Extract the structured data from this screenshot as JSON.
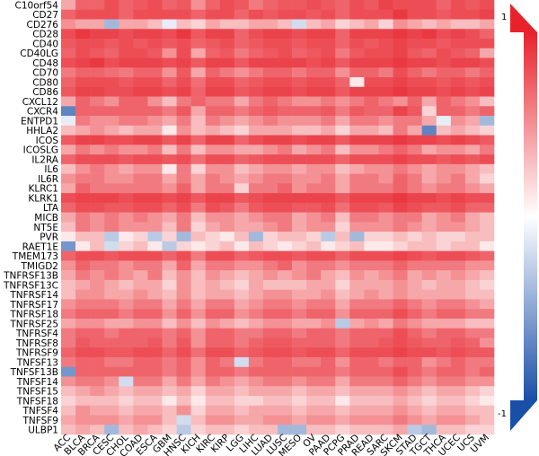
{
  "chart_data": {
    "type": "heatmap",
    "title": "",
    "rows": [
      "C10orf54",
      "CD27",
      "CD276",
      "CD28",
      "CD40",
      "CD40LG",
      "CD48",
      "CD70",
      "CD80",
      "CD86",
      "CXCL12",
      "CXCR4",
      "ENTPD1",
      "HHLA2",
      "ICOS",
      "ICOSLG",
      "IL2RA",
      "IL6",
      "IL6R",
      "KLRC1",
      "KLRK1",
      "LTA",
      "MICB",
      "NT5E",
      "PVR",
      "RAET1E",
      "TMEM173",
      "TMIGD2",
      "TNFRSF13B",
      "TNFRSF13C",
      "TNFRSF14",
      "TNFRSF17",
      "TNFRSF18",
      "TNFRSF25",
      "TNFRSF4",
      "TNFRSF8",
      "TNFRSF9",
      "TNFSF13",
      "TNFSF13B",
      "TNFSF14",
      "TNFSF15",
      "TNFSF18",
      "TNFSF4",
      "TNFSF9",
      "ULBP1"
    ],
    "columns": [
      "ACC",
      "BLCA",
      "BRCA",
      "CESC",
      "CHOL",
      "COAD",
      "ESCA",
      "GBM",
      "HNSC",
      "KICH",
      "KIRC",
      "KIRP",
      "LGG",
      "LIHC",
      "LUAD",
      "LUSC",
      "MESO",
      "OV",
      "PAAD",
      "PCPG",
      "PRAD",
      "READ",
      "SARC",
      "SKCM",
      "STAD",
      "TGCT",
      "THCA",
      "UCEC",
      "UCS",
      "UVM"
    ],
    "color_scale": {
      "min": -1,
      "max": 1,
      "ticks": [
        "1",
        "-1"
      ],
      "low_color": "#1a4fa8",
      "mid_color": "#ffffff",
      "high_color": "#e8222b"
    },
    "values": [
      [
        0.4,
        0.7,
        0.7,
        0.8,
        0.7,
        0.75,
        0.8,
        0.7,
        0.75,
        0.5,
        0.7,
        0.8,
        0.75,
        0.6,
        0.7,
        0.75,
        0.75,
        0.8,
        0.75,
        0.7,
        0.8,
        0.75,
        0.85,
        0.8,
        0.8,
        0.8,
        0.7,
        0.8,
        0.75,
        0.8
      ],
      [
        0.7,
        0.8,
        0.8,
        0.8,
        0.7,
        0.8,
        0.8,
        0.8,
        0.8,
        0.7,
        0.8,
        0.8,
        0.7,
        0.8,
        0.75,
        0.8,
        0.8,
        0.75,
        0.8,
        0.7,
        0.8,
        0.8,
        0.8,
        0.9,
        0.8,
        0.8,
        0.75,
        0.8,
        0.8,
        0.85
      ],
      [
        0.5,
        0.4,
        0.4,
        -0.4,
        0.4,
        0.4,
        0.3,
        -0.1,
        0.3,
        0.2,
        0.4,
        0.3,
        0.3,
        0.4,
        0.4,
        0.3,
        -0.2,
        0.3,
        0.4,
        0.2,
        0.3,
        0.4,
        0.2,
        0.5,
        0.4,
        0.3,
        0.4,
        0.3,
        0.3,
        0.4
      ],
      [
        0.8,
        0.9,
        0.85,
        0.85,
        0.8,
        0.85,
        0.85,
        0.8,
        0.9,
        0.75,
        0.85,
        0.85,
        0.7,
        0.8,
        0.85,
        0.85,
        0.8,
        0.85,
        0.85,
        0.7,
        0.85,
        0.85,
        0.85,
        0.9,
        0.85,
        0.9,
        0.8,
        0.85,
        0.8,
        0.7
      ],
      [
        0.75,
        0.8,
        0.8,
        0.75,
        0.8,
        0.75,
        0.8,
        0.75,
        0.8,
        0.7,
        0.75,
        0.8,
        0.7,
        0.75,
        0.8,
        0.8,
        0.75,
        0.8,
        0.8,
        0.7,
        0.8,
        0.75,
        0.8,
        0.85,
        0.8,
        0.8,
        0.75,
        0.8,
        0.8,
        0.8
      ],
      [
        0.7,
        0.8,
        0.75,
        0.7,
        0.8,
        0.8,
        0.75,
        0.5,
        0.8,
        0.4,
        0.7,
        0.75,
        0.6,
        0.7,
        0.75,
        0.8,
        0.7,
        0.75,
        0.8,
        0.6,
        0.75,
        0.8,
        0.8,
        0.85,
        0.75,
        0.7,
        0.8,
        0.75,
        0.7,
        0.4
      ],
      [
        0.8,
        0.85,
        0.9,
        0.8,
        0.85,
        0.85,
        0.85,
        0.8,
        0.85,
        0.75,
        0.85,
        0.85,
        0.75,
        0.85,
        0.85,
        0.85,
        0.85,
        0.8,
        0.85,
        0.75,
        0.85,
        0.85,
        0.85,
        0.9,
        0.85,
        0.85,
        0.8,
        0.85,
        0.85,
        0.8
      ],
      [
        0.6,
        0.7,
        0.7,
        0.65,
        0.6,
        0.7,
        0.7,
        0.5,
        0.75,
        0.4,
        0.7,
        0.6,
        0.5,
        0.6,
        0.7,
        0.7,
        0.6,
        0.7,
        0.7,
        0.5,
        0.7,
        0.7,
        0.6,
        0.8,
        0.7,
        0.6,
        0.7,
        0.7,
        0.6,
        0.7
      ],
      [
        0.7,
        0.8,
        0.8,
        0.8,
        0.75,
        0.8,
        0.8,
        0.7,
        0.8,
        0.65,
        0.8,
        0.8,
        0.7,
        0.75,
        0.8,
        0.8,
        0.75,
        0.8,
        0.8,
        0.7,
        0.1,
        0.8,
        0.8,
        0.85,
        0.8,
        0.8,
        0.75,
        0.8,
        0.75,
        0.8
      ],
      [
        0.75,
        0.85,
        0.85,
        0.8,
        0.8,
        0.85,
        0.85,
        0.8,
        0.85,
        0.7,
        0.85,
        0.85,
        0.75,
        0.8,
        0.85,
        0.85,
        0.8,
        0.85,
        0.85,
        0.75,
        0.85,
        0.85,
        0.85,
        0.9,
        0.85,
        0.85,
        0.8,
        0.85,
        0.8,
        0.85
      ],
      [
        0.4,
        0.7,
        0.6,
        0.5,
        0.7,
        0.7,
        0.5,
        0.3,
        0.6,
        0.7,
        0.6,
        0.6,
        0.4,
        0.6,
        0.7,
        0.6,
        0.5,
        0.5,
        0.6,
        0.5,
        0.6,
        0.7,
        0.6,
        0.5,
        0.7,
        0.4,
        0.7,
        0.6,
        0.5,
        0.3
      ],
      [
        -0.7,
        0.7,
        0.7,
        0.7,
        0.7,
        0.7,
        0.7,
        0.6,
        0.75,
        0.4,
        0.7,
        0.7,
        0.6,
        0.7,
        0.75,
        0.7,
        0.7,
        0.7,
        0.75,
        0.6,
        0.75,
        0.7,
        0.7,
        0.85,
        0.75,
        0.2,
        0.7,
        0.7,
        0.6,
        0.7
      ],
      [
        -0.1,
        0.6,
        0.5,
        0.5,
        0.6,
        0.6,
        0.5,
        0.4,
        0.6,
        0.3,
        0.6,
        0.5,
        0.4,
        0.5,
        0.6,
        0.5,
        0.5,
        0.5,
        0.6,
        0.4,
        0.6,
        0.6,
        0.5,
        0.6,
        0.6,
        0.4,
        -0.1,
        0.5,
        0.4,
        -0.4
      ],
      [
        0.3,
        0.4,
        0.5,
        0.4,
        0.3,
        0.4,
        0.4,
        0.1,
        0.5,
        0.3,
        0.4,
        0.3,
        0.2,
        0.4,
        0.4,
        0.4,
        0.3,
        0.3,
        0.4,
        0.2,
        0.4,
        0.4,
        0.3,
        0.6,
        0.4,
        -0.7,
        0.3,
        0.4,
        0.3,
        0.2
      ],
      [
        0.75,
        0.85,
        0.85,
        0.8,
        0.8,
        0.85,
        0.85,
        0.75,
        0.85,
        0.7,
        0.85,
        0.85,
        0.7,
        0.8,
        0.85,
        0.85,
        0.8,
        0.85,
        0.85,
        0.75,
        0.85,
        0.85,
        0.85,
        0.9,
        0.85,
        0.85,
        0.8,
        0.85,
        0.8,
        0.75
      ],
      [
        0.4,
        0.6,
        0.5,
        0.6,
        0.5,
        0.5,
        0.6,
        0.3,
        0.6,
        0.3,
        0.5,
        0.5,
        0.4,
        0.4,
        0.5,
        0.6,
        0.4,
        0.5,
        0.6,
        0.3,
        0.5,
        0.5,
        0.6,
        0.7,
        0.6,
        0.4,
        0.5,
        0.5,
        0.4,
        0.6
      ],
      [
        0.7,
        0.8,
        0.8,
        0.8,
        0.75,
        0.8,
        0.8,
        0.75,
        0.8,
        0.65,
        0.8,
        0.8,
        0.7,
        0.75,
        0.8,
        0.8,
        0.8,
        0.8,
        0.8,
        0.7,
        0.8,
        0.8,
        0.8,
        0.85,
        0.8,
        0.8,
        0.75,
        0.8,
        0.75,
        0.8
      ],
      [
        0.3,
        0.5,
        0.6,
        0.5,
        0.4,
        0.5,
        0.5,
        0.1,
        0.6,
        0.2,
        0.5,
        0.5,
        0.3,
        0.4,
        0.5,
        0.5,
        0.4,
        0.5,
        0.5,
        0.3,
        0.4,
        0.5,
        0.5,
        0.6,
        0.5,
        0.4,
        0.5,
        0.5,
        0.4,
        0.3
      ],
      [
        0.5,
        0.6,
        0.6,
        0.5,
        0.5,
        0.6,
        0.6,
        0.4,
        0.6,
        0.4,
        0.6,
        0.5,
        0.4,
        0.5,
        0.6,
        0.6,
        0.5,
        0.5,
        0.6,
        0.4,
        0.6,
        0.6,
        0.5,
        0.7,
        0.6,
        0.4,
        0.5,
        0.6,
        0.4,
        0.2
      ],
      [
        0.4,
        0.7,
        0.6,
        0.6,
        0.6,
        0.6,
        0.6,
        0.5,
        0.7,
        0.4,
        0.6,
        0.6,
        0.2,
        0.6,
        0.6,
        0.7,
        0.5,
        0.6,
        0.6,
        0.4,
        0.6,
        0.6,
        0.6,
        0.7,
        0.6,
        0.5,
        0.6,
        0.6,
        0.5,
        0.4
      ],
      [
        0.8,
        0.85,
        0.85,
        0.85,
        0.8,
        0.85,
        0.85,
        0.8,
        0.85,
        0.75,
        0.85,
        0.85,
        0.75,
        0.8,
        0.85,
        0.85,
        0.85,
        0.85,
        0.85,
        0.75,
        0.85,
        0.85,
        0.85,
        0.9,
        0.85,
        0.85,
        0.8,
        0.85,
        0.8,
        0.8
      ],
      [
        0.7,
        0.8,
        0.8,
        0.75,
        0.75,
        0.8,
        0.8,
        0.7,
        0.8,
        0.6,
        0.8,
        0.75,
        0.6,
        0.75,
        0.8,
        0.8,
        0.75,
        0.75,
        0.8,
        0.65,
        0.8,
        0.8,
        0.75,
        0.85,
        0.8,
        0.75,
        0.75,
        0.8,
        0.7,
        0.7
      ],
      [
        0.4,
        0.6,
        0.5,
        0.6,
        0.5,
        0.6,
        0.5,
        0.4,
        0.6,
        0.3,
        0.5,
        0.5,
        0.4,
        0.5,
        0.6,
        0.6,
        0.4,
        0.5,
        0.6,
        0.3,
        0.6,
        0.6,
        0.5,
        0.6,
        0.6,
        0.4,
        0.5,
        0.6,
        0.4,
        0.3
      ],
      [
        0.3,
        0.6,
        0.5,
        0.6,
        0.5,
        0.5,
        0.5,
        0.3,
        0.6,
        0.2,
        0.4,
        0.5,
        0.4,
        0.4,
        0.5,
        0.6,
        0.4,
        0.5,
        0.5,
        0.2,
        0.5,
        0.5,
        0.5,
        0.6,
        0.5,
        0.4,
        0.5,
        0.5,
        0.4,
        0.3
      ],
      [
        0.1,
        0.3,
        0.3,
        -0.3,
        0.1,
        0.2,
        -0.3,
        0.2,
        -0.4,
        0.3,
        0.2,
        0.1,
        0.3,
        -0.4,
        0.2,
        0.3,
        0.3,
        0.2,
        -0.3,
        0.3,
        -0.4,
        0.2,
        0.2,
        0.3,
        0.2,
        0.3,
        0.2,
        0.2,
        0.3,
        0.3
      ],
      [
        -0.6,
        0.1,
        0.3,
        -0.2,
        0.2,
        0.3,
        0.1,
        -0.3,
        0.2,
        0.1,
        0.2,
        0.3,
        0.1,
        0.3,
        0.2,
        0.1,
        0.2,
        0.3,
        0.1,
        0.2,
        0.3,
        0.1,
        0.1,
        0.2,
        0.3,
        0.3,
        0.2,
        0.3,
        0.3,
        0.1
      ],
      [
        0.7,
        0.8,
        0.8,
        0.75,
        0.8,
        0.8,
        0.8,
        0.7,
        0.8,
        0.6,
        0.8,
        0.8,
        0.7,
        0.75,
        0.8,
        0.8,
        0.75,
        0.8,
        0.8,
        0.7,
        0.8,
        0.8,
        0.8,
        0.85,
        0.8,
        0.75,
        0.8,
        0.8,
        0.75,
        0.7
      ],
      [
        0.5,
        0.7,
        0.6,
        0.6,
        0.5,
        0.6,
        0.6,
        0.4,
        0.7,
        0.4,
        0.6,
        0.6,
        0.5,
        0.5,
        0.6,
        0.7,
        0.5,
        0.6,
        0.6,
        0.5,
        0.6,
        0.6,
        0.6,
        0.7,
        0.6,
        0.6,
        0.6,
        0.6,
        0.5,
        0.5
      ],
      [
        0.4,
        0.6,
        0.5,
        0.6,
        0.5,
        0.4,
        0.6,
        0.3,
        0.5,
        0.3,
        0.5,
        0.4,
        0.3,
        0.4,
        0.5,
        0.4,
        0.5,
        0.6,
        0.4,
        0.3,
        0.5,
        0.4,
        0.5,
        0.6,
        0.4,
        0.5,
        0.4,
        0.5,
        0.4,
        0.3
      ],
      [
        0.3,
        0.4,
        0.5,
        0.4,
        0.3,
        0.4,
        0.4,
        0.2,
        0.5,
        0.3,
        0.4,
        0.3,
        0.2,
        0.4,
        0.3,
        0.3,
        0.3,
        0.4,
        0.4,
        0.2,
        0.4,
        0.4,
        0.4,
        0.5,
        0.4,
        0.3,
        0.4,
        0.4,
        0.3,
        0.2
      ],
      [
        0.3,
        0.5,
        0.5,
        0.4,
        0.4,
        0.5,
        0.4,
        0.3,
        0.5,
        0.3,
        0.4,
        0.4,
        0.3,
        0.4,
        0.5,
        0.5,
        0.4,
        0.4,
        0.5,
        0.3,
        0.4,
        0.5,
        0.4,
        0.5,
        0.4,
        0.4,
        0.4,
        0.4,
        0.3,
        0.3
      ],
      [
        0.5,
        0.6,
        0.6,
        0.6,
        0.5,
        0.6,
        0.6,
        0.4,
        0.6,
        0.4,
        0.6,
        0.6,
        0.4,
        0.5,
        0.6,
        0.6,
        0.5,
        0.6,
        0.6,
        0.4,
        0.6,
        0.6,
        0.6,
        0.7,
        0.6,
        0.5,
        0.6,
        0.6,
        0.5,
        0.4
      ],
      [
        0.6,
        0.7,
        0.7,
        0.7,
        0.6,
        0.7,
        0.7,
        0.5,
        0.7,
        0.5,
        0.7,
        0.7,
        0.5,
        0.6,
        0.7,
        0.7,
        0.6,
        0.7,
        0.7,
        0.5,
        0.7,
        0.7,
        0.7,
        0.8,
        0.7,
        0.6,
        0.7,
        0.7,
        0.6,
        0.6
      ],
      [
        0.4,
        0.5,
        0.5,
        0.4,
        0.4,
        0.5,
        0.5,
        0.3,
        0.5,
        0.3,
        0.5,
        0.4,
        0.3,
        0.4,
        0.5,
        0.5,
        0.4,
        0.4,
        0.5,
        -0.3,
        0.4,
        0.5,
        0.4,
        0.6,
        0.5,
        0.4,
        0.4,
        0.4,
        0.3,
        0.3
      ],
      [
        0.6,
        0.7,
        0.7,
        0.6,
        0.7,
        0.7,
        0.7,
        0.6,
        0.7,
        0.5,
        0.7,
        0.7,
        0.6,
        0.6,
        0.7,
        0.7,
        0.6,
        0.7,
        0.7,
        0.6,
        0.7,
        0.7,
        0.7,
        0.8,
        0.7,
        0.6,
        0.7,
        0.7,
        0.6,
        0.6
      ],
      [
        0.6,
        0.75,
        0.7,
        0.7,
        0.7,
        0.7,
        0.75,
        0.6,
        0.75,
        0.5,
        0.7,
        0.7,
        0.6,
        0.7,
        0.75,
        0.75,
        0.7,
        0.7,
        0.7,
        0.6,
        0.7,
        0.7,
        0.75,
        0.8,
        0.75,
        0.7,
        0.7,
        0.75,
        0.7,
        0.5
      ],
      [
        0.7,
        0.8,
        0.8,
        0.75,
        0.75,
        0.8,
        0.8,
        0.7,
        0.8,
        0.65,
        0.8,
        0.8,
        0.7,
        0.75,
        0.8,
        0.8,
        0.75,
        0.8,
        0.8,
        0.7,
        0.8,
        0.8,
        0.8,
        0.85,
        0.8,
        0.8,
        0.75,
        0.8,
        0.75,
        0.75
      ],
      [
        0.6,
        0.7,
        0.7,
        0.6,
        0.6,
        0.7,
        0.7,
        0.6,
        0.7,
        0.5,
        0.7,
        0.6,
        -0.2,
        0.6,
        0.7,
        0.7,
        0.6,
        0.6,
        0.7,
        0.5,
        0.7,
        0.7,
        0.6,
        0.7,
        0.7,
        0.5,
        0.6,
        0.7,
        0.6,
        0.6
      ],
      [
        -0.6,
        0.7,
        0.7,
        0.7,
        0.7,
        0.7,
        0.7,
        0.6,
        0.7,
        0.5,
        0.7,
        0.7,
        0.6,
        0.7,
        0.7,
        0.7,
        0.7,
        0.7,
        0.7,
        0.6,
        0.7,
        0.7,
        0.7,
        0.8,
        0.7,
        0.6,
        0.7,
        0.7,
        0.6,
        0.7
      ],
      [
        0.5,
        0.6,
        0.6,
        0.5,
        -0.2,
        0.6,
        0.6,
        0.4,
        0.6,
        0.4,
        0.6,
        0.5,
        0.4,
        0.5,
        0.6,
        0.6,
        0.5,
        0.6,
        0.6,
        0.4,
        0.6,
        0.6,
        0.6,
        0.7,
        0.6,
        0.5,
        0.6,
        0.6,
        0.5,
        0.5
      ],
      [
        0.3,
        0.4,
        0.5,
        0.4,
        0.3,
        0.4,
        0.4,
        0.3,
        0.4,
        0.2,
        0.4,
        0.4,
        0.3,
        0.4,
        0.4,
        0.4,
        0.3,
        0.4,
        0.4,
        0.3,
        0.4,
        0.4,
        0.4,
        0.5,
        0.4,
        0.3,
        0.4,
        0.4,
        0.3,
        0.2
      ],
      [
        0.2,
        0.3,
        0.3,
        0.3,
        0.2,
        0.3,
        0.3,
        0.1,
        0.3,
        0.1,
        0.3,
        0.3,
        0.2,
        0.2,
        0.3,
        0.3,
        0.2,
        0.3,
        0.3,
        0.1,
        0.3,
        0.3,
        0.3,
        0.4,
        0.3,
        0.2,
        0.3,
        0.3,
        0.2,
        0.1
      ],
      [
        0.3,
        0.5,
        0.4,
        0.4,
        0.3,
        0.4,
        0.4,
        0.3,
        0.5,
        0.2,
        0.4,
        0.4,
        0.3,
        0.4,
        0.4,
        0.4,
        0.3,
        0.4,
        0.4,
        0.3,
        0.4,
        0.4,
        0.4,
        0.5,
        0.4,
        0.3,
        0.4,
        0.4,
        0.3,
        0.3
      ],
      [
        0.4,
        0.5,
        0.5,
        0.5,
        0.4,
        0.5,
        0.5,
        0.3,
        -0.2,
        0.3,
        0.5,
        0.5,
        0.4,
        0.4,
        0.5,
        0.5,
        0.4,
        0.5,
        0.5,
        0.4,
        0.5,
        0.5,
        0.5,
        0.6,
        0.5,
        0.4,
        0.5,
        0.5,
        0.4,
        0.3
      ],
      [
        0.3,
        0.4,
        0.3,
        -0.4,
        0.3,
        0.4,
        0.3,
        0.2,
        -0.3,
        0.2,
        0.3,
        0.3,
        0.2,
        0.3,
        0.3,
        -0.4,
        -0.4,
        0.3,
        0.3,
        0.2,
        0.3,
        0.3,
        0.3,
        0.4,
        -0.3,
        -0.4,
        0.3,
        0.3,
        0.2,
        0.2
      ]
    ]
  }
}
